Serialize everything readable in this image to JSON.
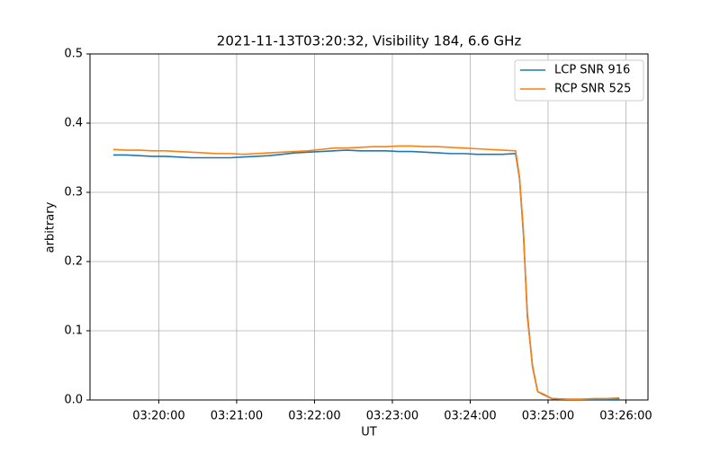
{
  "chart_data": {
    "type": "line",
    "title": "2021-11-13T03:20:32, Visibility 184, 6.6 GHz",
    "x_label": "UT",
    "y_label": "arbitrary",
    "x": [
      "03:19:25",
      "03:19:35",
      "03:19:45",
      "03:19:55",
      "03:20:05",
      "03:20:15",
      "03:20:25",
      "03:20:35",
      "03:20:45",
      "03:20:55",
      "03:21:05",
      "03:21:15",
      "03:21:25",
      "03:21:35",
      "03:21:45",
      "03:21:55",
      "03:22:05",
      "03:22:15",
      "03:22:25",
      "03:22:35",
      "03:22:45",
      "03:22:55",
      "03:23:05",
      "03:23:15",
      "03:23:25",
      "03:23:35",
      "03:23:45",
      "03:23:55",
      "03:24:05",
      "03:24:15",
      "03:24:25",
      "03:24:35",
      "03:24:38",
      "03:24:41",
      "03:24:44",
      "03:24:48",
      "03:24:52",
      "03:24:56",
      "03:25:03",
      "03:25:15",
      "03:25:25",
      "03:25:35",
      "03:25:45",
      "03:25:55"
    ],
    "series": [
      {
        "name": "LCP SNR 916",
        "color": "#1f77b4",
        "values": [
          0.354,
          0.354,
          0.353,
          0.352,
          0.352,
          0.351,
          0.35,
          0.35,
          0.35,
          0.35,
          0.351,
          0.352,
          0.353,
          0.355,
          0.357,
          0.358,
          0.359,
          0.36,
          0.361,
          0.36,
          0.36,
          0.36,
          0.359,
          0.359,
          0.358,
          0.357,
          0.356,
          0.356,
          0.355,
          0.355,
          0.355,
          0.356,
          0.32,
          0.24,
          0.125,
          0.048,
          0.012,
          0.008,
          0.002,
          0.001,
          0.001,
          0.001,
          0.001,
          0.001
        ]
      },
      {
        "name": "RCP SNR 525",
        "color": "#ff7f0e",
        "values": [
          0.362,
          0.361,
          0.361,
          0.36,
          0.36,
          0.359,
          0.358,
          0.357,
          0.356,
          0.356,
          0.355,
          0.356,
          0.357,
          0.358,
          0.359,
          0.36,
          0.362,
          0.364,
          0.364,
          0.365,
          0.366,
          0.366,
          0.367,
          0.367,
          0.366,
          0.366,
          0.365,
          0.364,
          0.363,
          0.362,
          0.361,
          0.36,
          0.322,
          0.245,
          0.12,
          0.05,
          0.012,
          0.009,
          0.002,
          0.001,
          0.001,
          0.002,
          0.002,
          0.003
        ]
      }
    ],
    "xlim": [
      "03:19:07",
      "03:26:17"
    ],
    "xticks": [
      "03:20:00",
      "03:21:00",
      "03:22:00",
      "03:23:00",
      "03:24:00",
      "03:25:00",
      "03:26:00"
    ],
    "ylim": [
      0,
      0.5
    ],
    "yticks": [
      {
        "value": 0,
        "label": "0.0"
      },
      0.1,
      0.2,
      0.3,
      0.4,
      0.5
    ],
    "grid": true,
    "legend": "upper-right"
  }
}
